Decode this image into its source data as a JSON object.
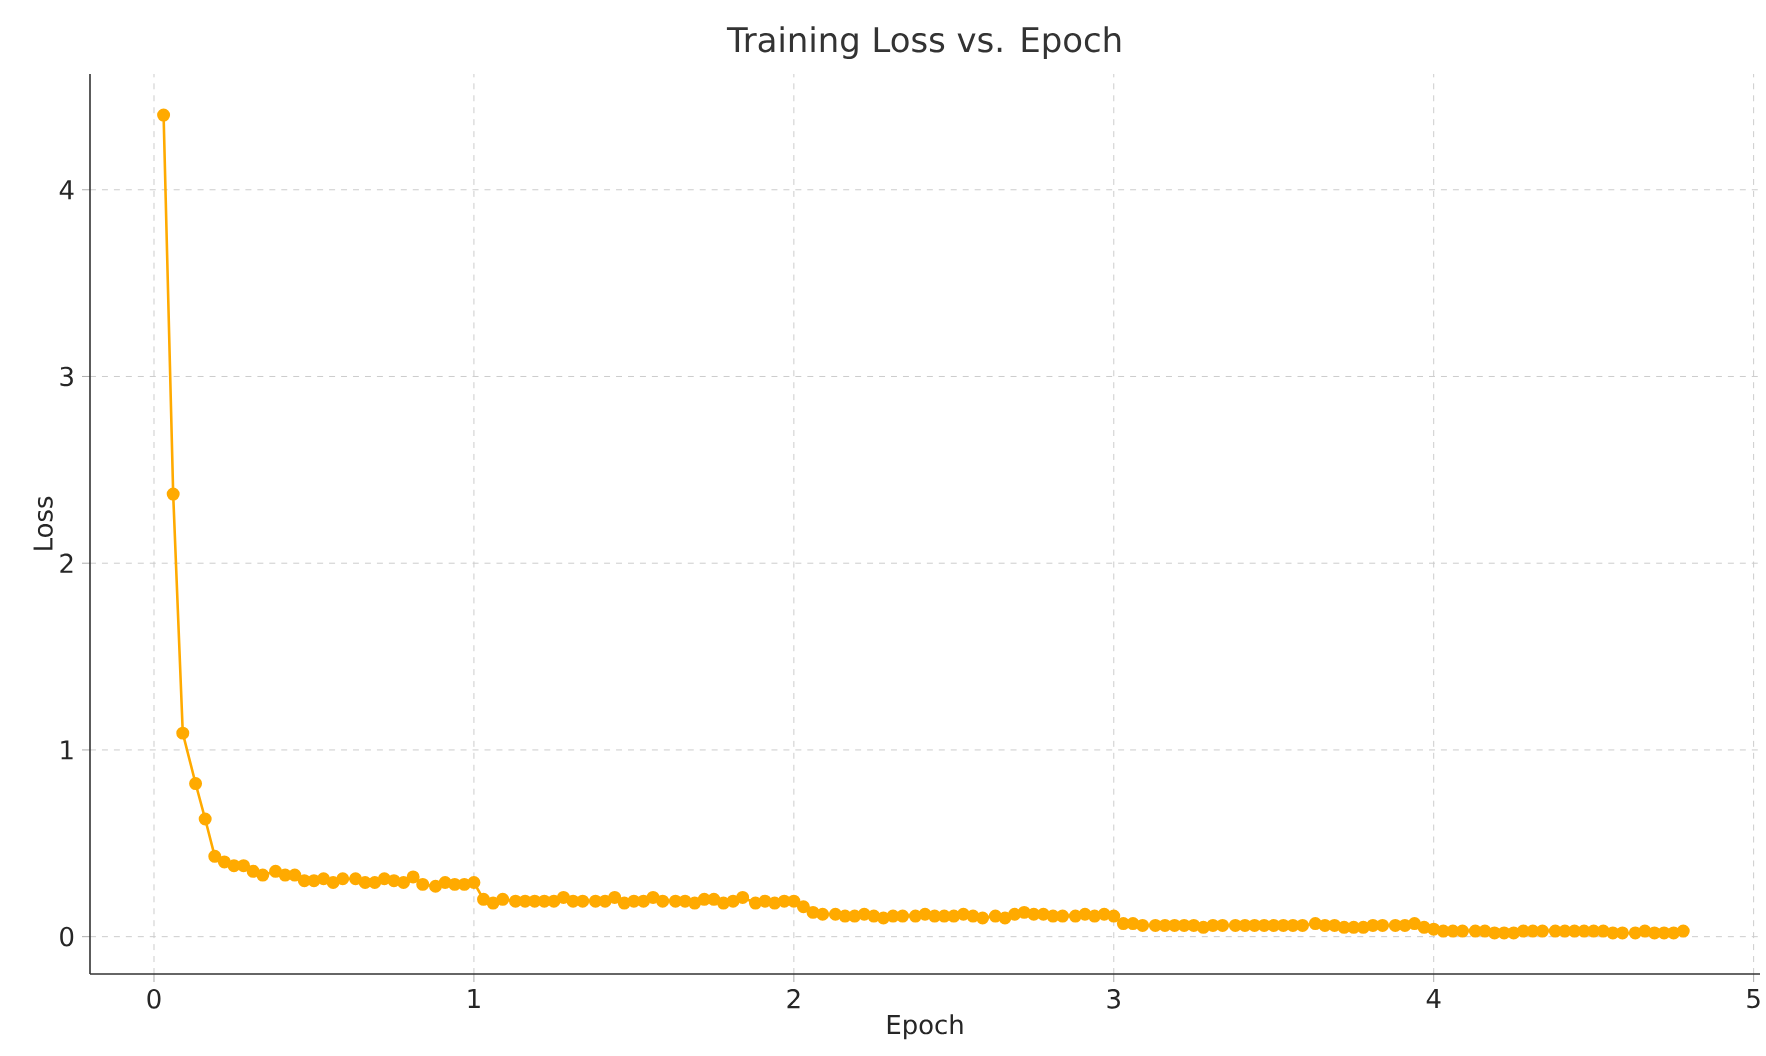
{
  "chart_data": {
    "type": "line",
    "title": "Training Loss vs. Epoch",
    "xlabel": "Epoch",
    "ylabel": "Loss",
    "xlim": [
      -0.2,
      5.02
    ],
    "ylim": [
      -0.2,
      4.62
    ],
    "xticks": [
      0,
      1,
      2,
      3,
      4,
      5
    ],
    "yticks": [
      0,
      1,
      2,
      3,
      4
    ],
    "grid": true,
    "marker": "circle",
    "line_style": "solid",
    "series": [
      {
        "color": "#ffaa00",
        "x": [
          0.03,
          0.06,
          0.09,
          0.13,
          0.16,
          0.19,
          0.22,
          0.25,
          0.28,
          0.31,
          0.34,
          0.38,
          0.41,
          0.44,
          0.47,
          0.5,
          0.53,
          0.56,
          0.59,
          0.63,
          0.66,
          0.69,
          0.72,
          0.75,
          0.78,
          0.81,
          0.84,
          0.88,
          0.91,
          0.94,
          0.97,
          1.0,
          1.03,
          1.06,
          1.09,
          1.13,
          1.16,
          1.19,
          1.22,
          1.25,
          1.28,
          1.31,
          1.34,
          1.38,
          1.41,
          1.44,
          1.47,
          1.5,
          1.53,
          1.56,
          1.59,
          1.63,
          1.66,
          1.69,
          1.72,
          1.75,
          1.78,
          1.81,
          1.84,
          1.88,
          1.91,
          1.94,
          1.97,
          2.0,
          2.03,
          2.06,
          2.09,
          2.13,
          2.16,
          2.19,
          2.22,
          2.25,
          2.28,
          2.31,
          2.34,
          2.38,
          2.41,
          2.44,
          2.47,
          2.5,
          2.53,
          2.56,
          2.59,
          2.63,
          2.66,
          2.69,
          2.72,
          2.75,
          2.78,
          2.81,
          2.84,
          2.88,
          2.91,
          2.94,
          2.97,
          3.0,
          3.03,
          3.06,
          3.09,
          3.13,
          3.16,
          3.19,
          3.22,
          3.25,
          3.28,
          3.31,
          3.34,
          3.38,
          3.41,
          3.44,
          3.47,
          3.5,
          3.53,
          3.56,
          3.59,
          3.63,
          3.66,
          3.69,
          3.72,
          3.75,
          3.78,
          3.81,
          3.84,
          3.88,
          3.91,
          3.94,
          3.97,
          4.0,
          4.03,
          4.06,
          4.09,
          4.13,
          4.16,
          4.19,
          4.22,
          4.25,
          4.28,
          4.31,
          4.34,
          4.38,
          4.41,
          4.44,
          4.47,
          4.5,
          4.53,
          4.56,
          4.59,
          4.63,
          4.66,
          4.69,
          4.72,
          4.75,
          4.78
        ],
        "values": [
          4.4,
          2.37,
          1.09,
          0.82,
          0.63,
          0.43,
          0.4,
          0.38,
          0.38,
          0.35,
          0.33,
          0.35,
          0.33,
          0.33,
          0.3,
          0.3,
          0.31,
          0.29,
          0.31,
          0.31,
          0.29,
          0.29,
          0.31,
          0.3,
          0.29,
          0.32,
          0.28,
          0.27,
          0.29,
          0.28,
          0.28,
          0.29,
          0.2,
          0.18,
          0.2,
          0.19,
          0.19,
          0.19,
          0.19,
          0.19,
          0.21,
          0.19,
          0.19,
          0.19,
          0.19,
          0.21,
          0.18,
          0.19,
          0.19,
          0.21,
          0.19,
          0.19,
          0.19,
          0.18,
          0.2,
          0.2,
          0.18,
          0.19,
          0.21,
          0.18,
          0.19,
          0.18,
          0.19,
          0.19,
          0.16,
          0.13,
          0.12,
          0.12,
          0.11,
          0.11,
          0.12,
          0.11,
          0.1,
          0.11,
          0.11,
          0.11,
          0.12,
          0.11,
          0.11,
          0.11,
          0.12,
          0.11,
          0.1,
          0.11,
          0.1,
          0.12,
          0.13,
          0.12,
          0.12,
          0.11,
          0.11,
          0.11,
          0.12,
          0.11,
          0.12,
          0.11,
          0.07,
          0.07,
          0.06,
          0.06,
          0.06,
          0.06,
          0.06,
          0.06,
          0.05,
          0.06,
          0.06,
          0.06,
          0.06,
          0.06,
          0.06,
          0.06,
          0.06,
          0.06,
          0.06,
          0.07,
          0.06,
          0.06,
          0.05,
          0.05,
          0.05,
          0.06,
          0.06,
          0.06,
          0.06,
          0.07,
          0.05,
          0.04,
          0.03,
          0.03,
          0.03,
          0.03,
          0.03,
          0.02,
          0.02,
          0.02,
          0.03,
          0.03,
          0.03,
          0.03,
          0.03,
          0.03,
          0.03,
          0.03,
          0.03,
          0.02,
          0.02,
          0.02,
          0.03,
          0.02,
          0.02,
          0.02,
          0.03
        ]
      }
    ]
  }
}
